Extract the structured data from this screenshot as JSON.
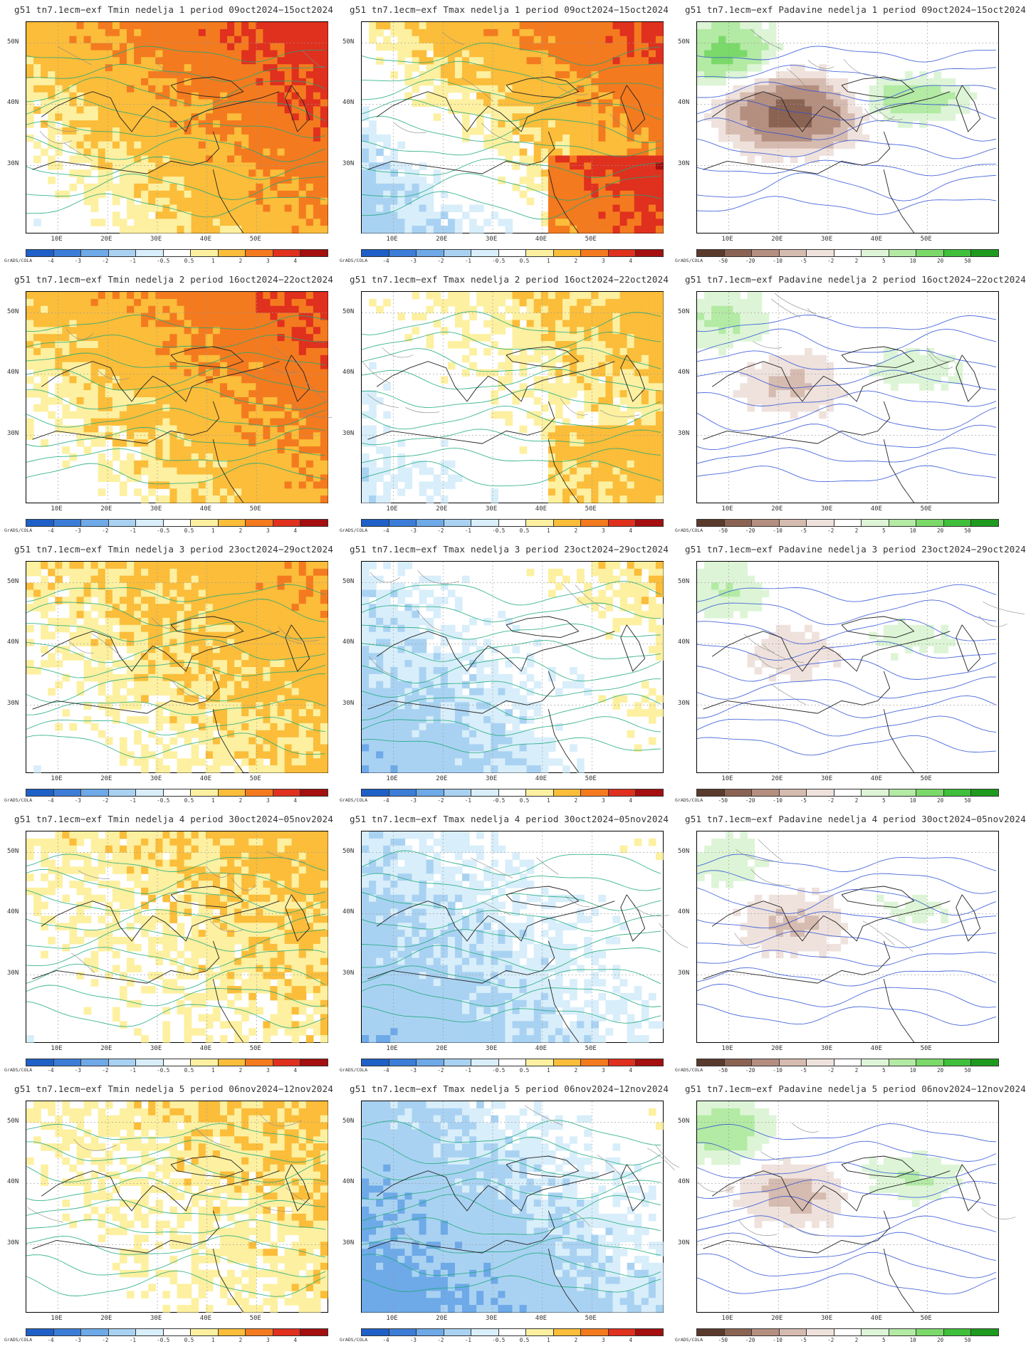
{
  "rows": [
    {
      "week": 1,
      "panels": [
        {
          "type": "tmin",
          "title": "g51 tn7.1ecm−exf Tmin nedelja 1 period 09oct2024−15oct2024"
        },
        {
          "type": "tmax",
          "title": "g51 tn7.1ecm−exf Tmax nedelja 1 period 09oct2024−15oct2024"
        },
        {
          "type": "prec",
          "title": "g51 tn7.1ecm−exf Padavine nedelja 1 period 09oct2024−15oct2024"
        }
      ]
    },
    {
      "week": 2,
      "panels": [
        {
          "type": "tmin",
          "title": "g51 tn7.1ecm−exf Tmin nedelja 2 period 16oct2024−22oct2024"
        },
        {
          "type": "tmax",
          "title": "g51 tn7.1ecm−exf Tmax nedelja 2 period 16oct2024−22oct2024"
        },
        {
          "type": "prec",
          "title": "g51 tn7.1ecm−exf Padavine nedelja 2 period 16oct2024−22oct2024"
        }
      ]
    },
    {
      "week": 3,
      "panels": [
        {
          "type": "tmin",
          "title": "g51 tn7.1ecm−exf Tmin nedelja 3 period 23oct2024−29oct2024"
        },
        {
          "type": "tmax",
          "title": "g51 tn7.1ecm−exf Tmax nedelja 3 period 23oct2024−29oct2024"
        },
        {
          "type": "prec",
          "title": "g51 tn7.1ecm−exf Padavine nedelja 3 period 23oct2024−29oct2024"
        }
      ]
    },
    {
      "week": 4,
      "panels": [
        {
          "type": "tmin",
          "title": "g51 tn7.1ecm−exf Tmin nedelja 4 period 30oct2024−05nov2024"
        },
        {
          "type": "tmax",
          "title": "g51 tn7.1ecm−exf Tmax nedelja 4 period 30oct2024−05nov2024"
        },
        {
          "type": "prec",
          "title": "g51 tn7.1ecm−exf Padavine nedelja 4 period 30oct2024−05nov2024"
        }
      ]
    },
    {
      "week": 5,
      "panels": [
        {
          "type": "tmin",
          "title": "g51 tn7.1ecm−exf Tmin nedelja 5 period 06nov2024−12nov2024"
        },
        {
          "type": "tmax",
          "title": "g51 tn7.1ecm−exf Tmax nedelja 5 period 06nov2024−12nov2024"
        },
        {
          "type": "prec",
          "title": "g51 tn7.1ecm−exf Padavine nedelja 5 period 06nov2024−12nov2024"
        }
      ]
    }
  ],
  "map_axes": {
    "lat_labels": [
      "50N",
      "40N",
      "30N"
    ],
    "lon_labels": [
      "10E",
      "20E",
      "30E",
      "40E",
      "50E"
    ]
  },
  "colorbars": {
    "temp": {
      "labels": [
        "-4",
        "-3",
        "-2",
        "-1",
        "-0.5",
        "0.5",
        "1",
        "2",
        "3",
        "4"
      ],
      "colors": [
        "#1f60c8",
        "#3c7dd8",
        "#6ea9e8",
        "#a9d2f2",
        "#d8eefa",
        "#ffffff",
        "#fdf0a0",
        "#fbbd3a",
        "#f47a1f",
        "#e0301e",
        "#a50f0f"
      ]
    },
    "prec": {
      "labels": [
        "-50",
        "-20",
        "-10",
        "-5",
        "-2",
        "2",
        "5",
        "10",
        "20",
        "50"
      ],
      "colors": [
        "#5a3a2c",
        "#8a6352",
        "#b48f80",
        "#d6bbb0",
        "#efe2dc",
        "#ffffff",
        "#ddf5d6",
        "#b3eaa4",
        "#7bd96a",
        "#3fbf3a",
        "#1e9a1e"
      ]
    },
    "source_label": "GrADS/COLA"
  },
  "anomaly_levels": {
    "tmin": [
      {
        "warm": 3.4,
        "cool": 0.0
      },
      {
        "warm": 3.0,
        "cool": 0.0
      },
      {
        "warm": 1.8,
        "cool": 0.0
      },
      {
        "warm": 1.3,
        "cool": 0.0
      },
      {
        "warm": 1.1,
        "cool": 0.0
      }
    ],
    "tmax": [
      {
        "warm": 3.0,
        "cool": -1.2
      },
      {
        "warm": 1.3,
        "cool": -0.6
      },
      {
        "warm": 0.7,
        "cool": -1.6
      },
      {
        "warm": 0.2,
        "cool": -1.6
      },
      {
        "warm": 0.1,
        "cool": -2.4
      }
    ],
    "prec": [
      {
        "wet": 12,
        "dry": -25
      },
      {
        "wet": 6,
        "dry": -6
      },
      {
        "wet": 5,
        "dry": -4
      },
      {
        "wet": 4,
        "dry": -6
      },
      {
        "wet": 8,
        "dry": -7
      }
    ]
  }
}
